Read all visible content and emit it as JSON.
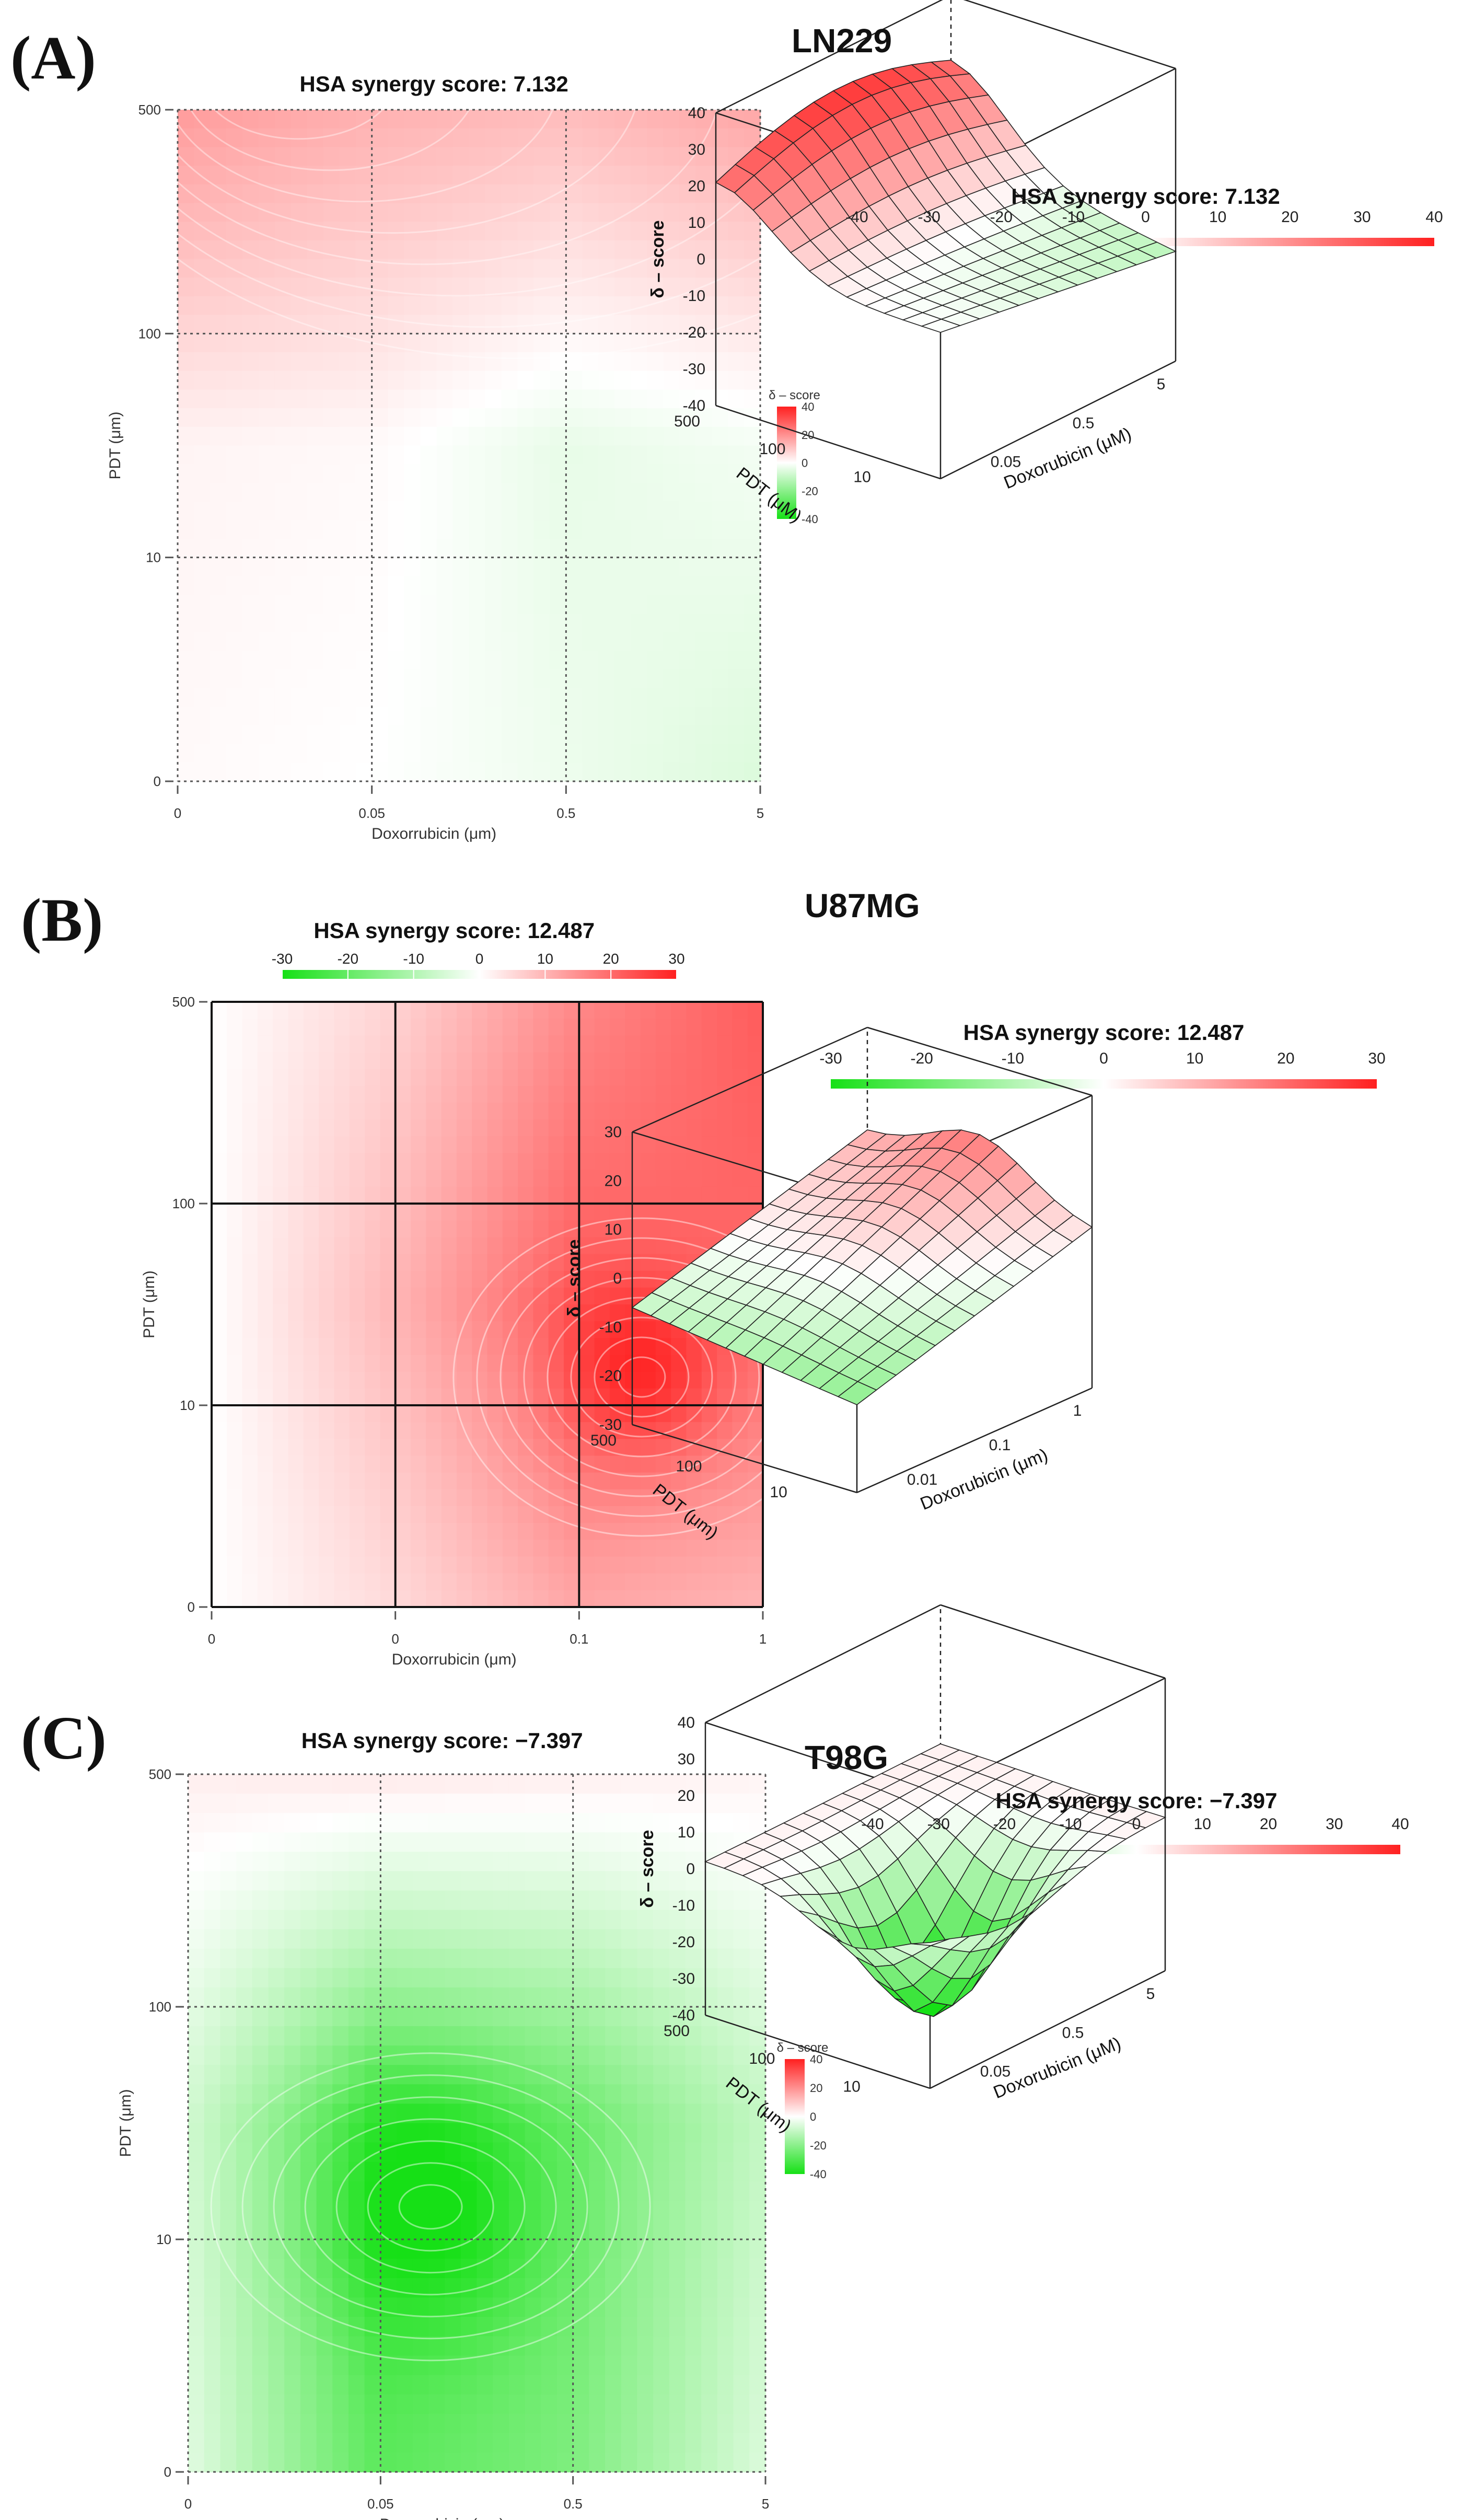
{
  "figure": {
    "panels": [
      {
        "letter": "(A)",
        "cell_line": "LN229"
      },
      {
        "letter": "(B)",
        "cell_line": "U87MG"
      },
      {
        "letter": "(C)",
        "cell_line": "T98G"
      }
    ]
  },
  "chart_data": [
    {
      "type": "heatmap",
      "panel": "(A)",
      "title": "HSA synergy score: 7.132",
      "xlabel": "Doxorrubicin (μm)",
      "ylabel": "PDT (μm)",
      "x_ticks": [
        "0",
        "0.05",
        "0.5",
        "5"
      ],
      "y_ticks": [
        "0",
        "10",
        "100",
        "500"
      ],
      "colorbar": {
        "title": "δ – score",
        "ticks": [
          "40",
          "20",
          "0",
          "-20",
          "-40"
        ],
        "range": [
          -40,
          40
        ]
      },
      "zlim": [
        -40,
        40
      ],
      "z_by_pdt_row_top_to_bottom": [
        [
          18,
          14,
          12,
          16
        ],
        [
          2,
          1,
          -4,
          -2
        ],
        [
          1,
          0,
          -3,
          -6
        ]
      ],
      "grid": "dotted",
      "colors": {
        "high": "#ff2020",
        "mid": "#ffffff",
        "low": "#16e016"
      }
    },
    {
      "type": "surface3d",
      "panel": "(A)",
      "title": "HSA synergy score: 7.132",
      "colorbar_ticks": [
        "-40",
        "-30",
        "-20",
        "-10",
        "0",
        "10",
        "20",
        "30",
        "40"
      ],
      "zlabel": "δ – score",
      "z_ticks": [
        "40",
        "30",
        "20",
        "10",
        "0",
        "-10",
        "-20",
        "-30",
        "-40"
      ],
      "y_axis_label": "PDT (μM)",
      "y_ticks": [
        "500",
        "100",
        "10"
      ],
      "x_axis_label": "Doxorubicin (μM)",
      "x_ticks": [
        "0.05",
        "0.5",
        "5"
      ],
      "zlim": [
        -40,
        40
      ]
    },
    {
      "type": "heatmap",
      "panel": "(B)",
      "title": "HSA synergy score: 12.487",
      "xlabel": "Doxorrubicin (μm)",
      "ylabel": "PDT (μm)",
      "x_ticks": [
        "0",
        "0",
        "0.1",
        "1"
      ],
      "y_ticks": [
        "0",
        "10",
        "100",
        "500"
      ],
      "colorbar_ticks": [
        "-30",
        "-20",
        "-10",
        "0",
        "10",
        "20",
        "30"
      ],
      "zlim": [
        -30,
        30
      ],
      "z_by_pdt_row_top_to_bottom": [
        [
          0,
          6,
          16,
          22
        ],
        [
          0,
          10,
          22,
          20
        ],
        [
          0,
          5,
          12,
          10
        ]
      ],
      "peak": {
        "doxorubicin": 0.3,
        "pdt": 16,
        "value": 28
      },
      "grid": "solid"
    },
    {
      "type": "surface3d",
      "panel": "(B)",
      "title": "HSA synergy score: 12.487",
      "colorbar_ticks": [
        "-30",
        "-20",
        "-10",
        "0",
        "10",
        "20",
        "30"
      ],
      "zlabel": "δ – score",
      "z_ticks": [
        "30",
        "20",
        "10",
        "0",
        "-10",
        "-20",
        "-30"
      ],
      "y_axis_label": "PDT (μm)",
      "y_ticks": [
        "500",
        "100",
        "10"
      ],
      "x_axis_label": "Doxorubicin (μm)",
      "x_ticks": [
        "0.01",
        "0.1",
        "1"
      ],
      "zlim": [
        -30,
        30
      ]
    },
    {
      "type": "heatmap",
      "panel": "(C)",
      "title": "HSA synergy score: −7.397",
      "xlabel": "Doxorrubicin (μm)",
      "ylabel": "PDT (μm)",
      "x_ticks": [
        "0",
        "0.05",
        "0.5",
        "5"
      ],
      "y_ticks": [
        "0",
        "10",
        "100",
        "500"
      ],
      "colorbar": {
        "title": "δ – score",
        "ticks": [
          "40",
          "20",
          "0",
          "-20",
          "-40"
        ],
        "range": [
          -40,
          40
        ]
      },
      "zlim": [
        -40,
        40
      ],
      "z_by_pdt_row_top_to_bottom": [
        [
          3,
          4,
          3,
          2
        ],
        [
          -8,
          -30,
          -25,
          -10
        ],
        [
          -5,
          -28,
          -22,
          -6
        ]
      ],
      "trough": {
        "doxorubicin": 0.15,
        "pdt": 10,
        "value": -40
      },
      "grid": "dotted"
    },
    {
      "type": "surface3d",
      "panel": "(C)",
      "title": "HSA synergy score: −7.397",
      "colorbar_ticks": [
        "-40",
        "-30",
        "-20",
        "-10",
        "0",
        "10",
        "20",
        "30",
        "40"
      ],
      "zlabel": "δ – score",
      "z_ticks": [
        "40",
        "30",
        "20",
        "10",
        "0",
        "-10",
        "-20",
        "-30",
        "-40"
      ],
      "y_axis_label": "PDT (μm)",
      "y_ticks": [
        "500",
        "100",
        "10"
      ],
      "x_axis_label": "Doxorubicin (μM)",
      "x_ticks": [
        "0.05",
        "0.5",
        "5"
      ],
      "zlim": [
        -40,
        40
      ]
    }
  ]
}
